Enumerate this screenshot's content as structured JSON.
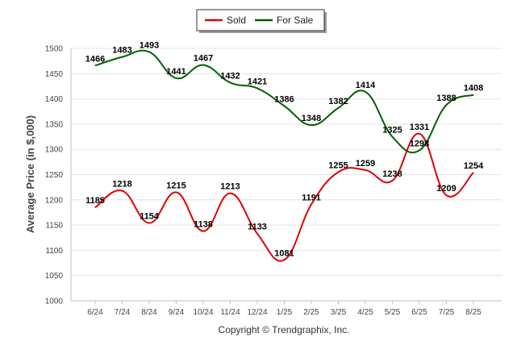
{
  "chart_data": {
    "type": "line",
    "title": "",
    "xlabel": "",
    "ylabel": "Average Price (in $,000)",
    "ylim": [
      1000,
      1500
    ],
    "yticks": [
      1000,
      1050,
      1100,
      1150,
      1200,
      1250,
      1300,
      1350,
      1400,
      1450,
      1500
    ],
    "categories": [
      "6/24",
      "7/24",
      "8/24",
      "9/24",
      "10/24",
      "11/24",
      "12/24",
      "1/25",
      "2/25",
      "3/25",
      "4/25",
      "5/25",
      "6/25",
      "7/25",
      "8/25"
    ],
    "legend_position": "top-center",
    "grid": true,
    "series": [
      {
        "name": "Sold",
        "color": "#e00000",
        "values": [
          1185,
          1218,
          1154,
          1215,
          1138,
          1213,
          1133,
          1081,
          1191,
          1255,
          1259,
          1238,
          1331,
          1209,
          1254
        ]
      },
      {
        "name": "For Sale",
        "color": "#006000",
        "values": [
          1466,
          1483,
          1493,
          1441,
          1467,
          1432,
          1421,
          1386,
          1348,
          1382,
          1414,
          1325,
          1298,
          1388,
          1408
        ]
      }
    ]
  },
  "credit": "Copyright © Trendgraphix, Inc."
}
